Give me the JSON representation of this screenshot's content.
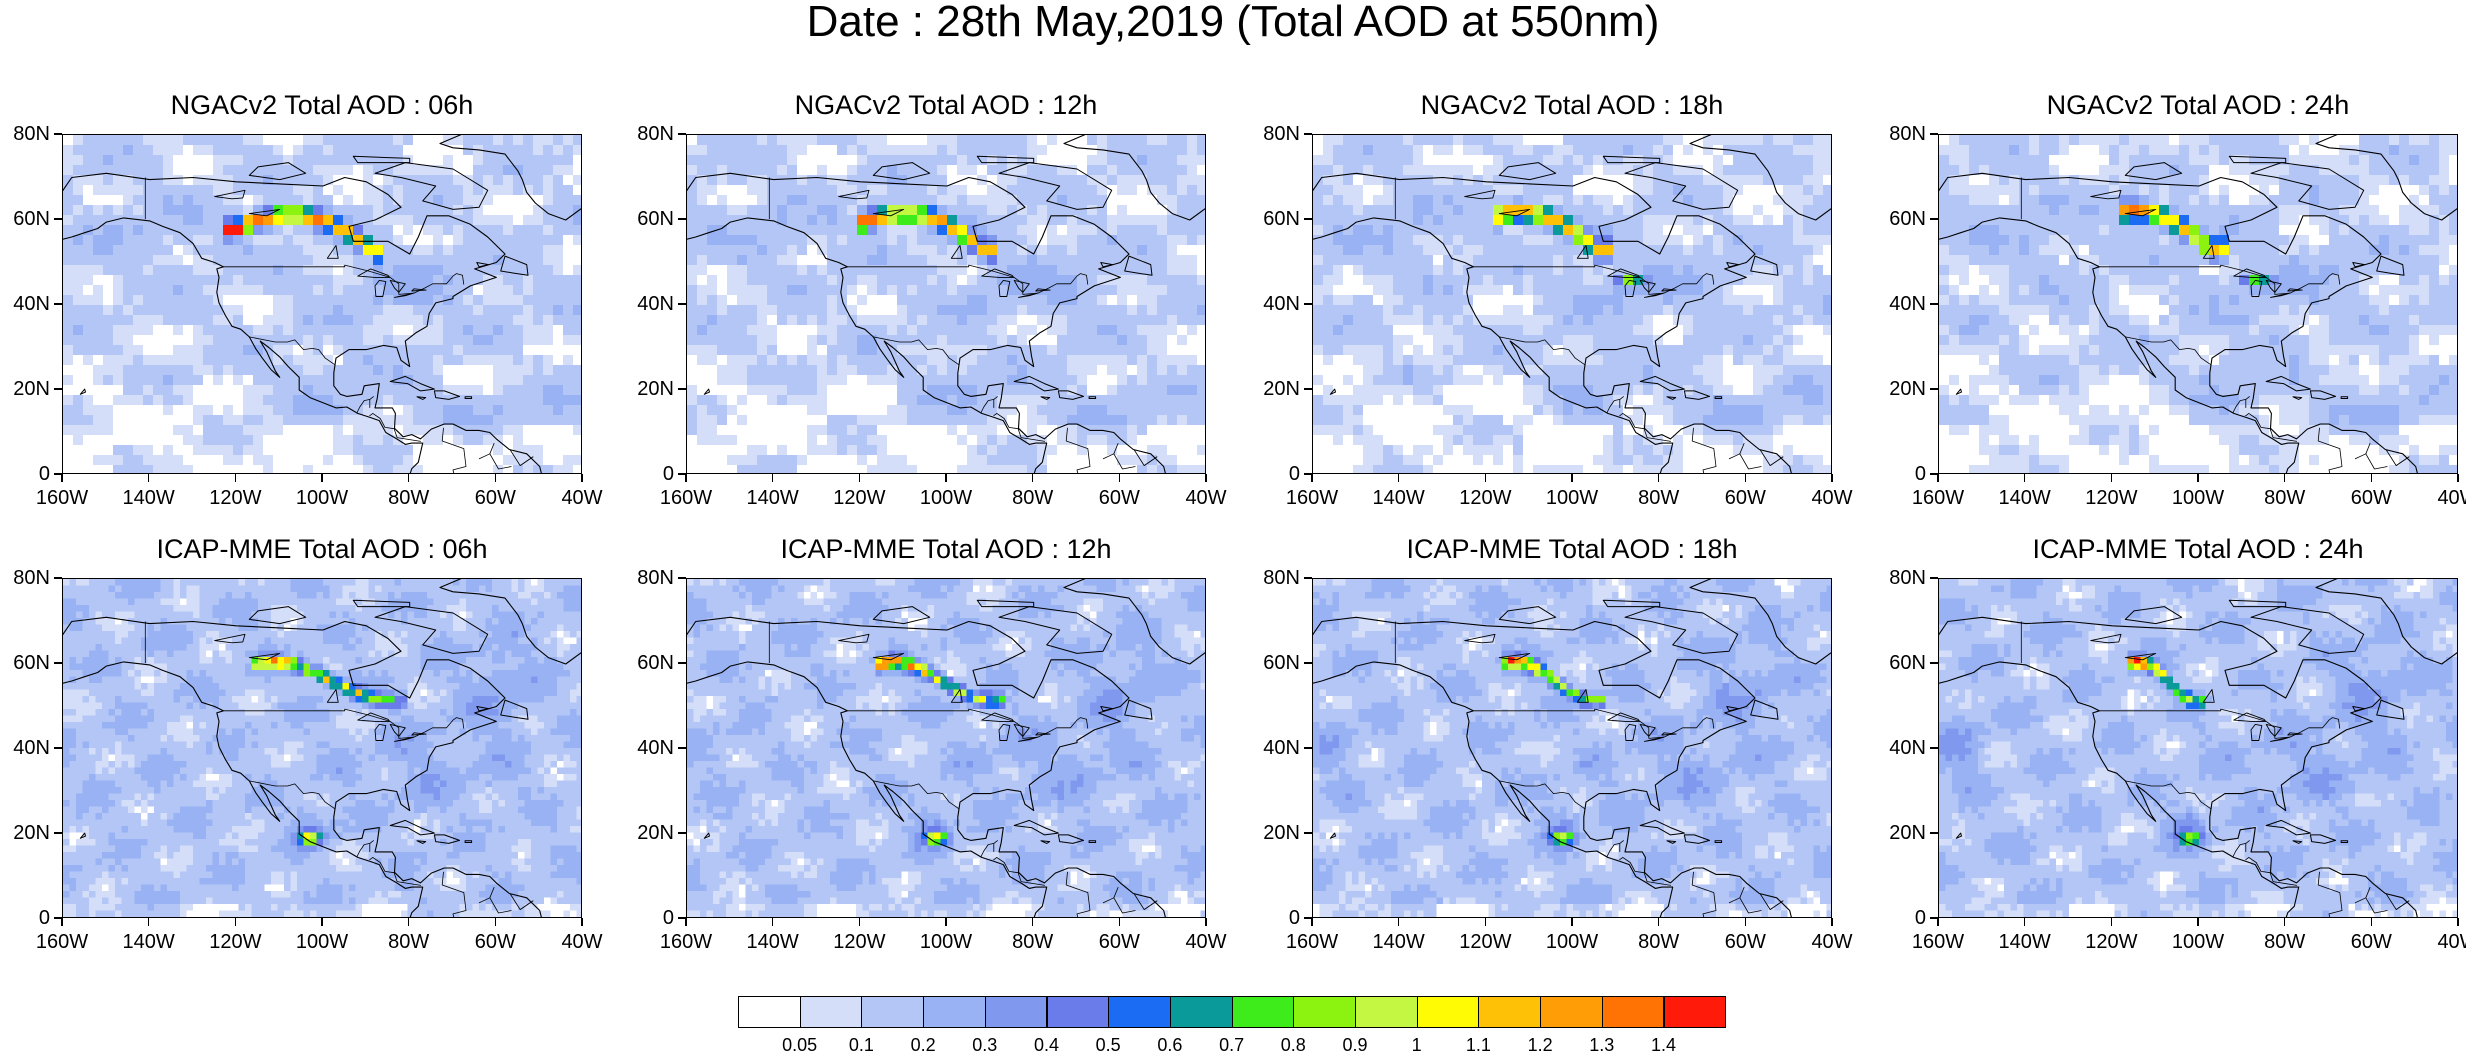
{
  "title": "Date : 28th May,2019 (Total AOD at 550nm)",
  "axes": {
    "lat_ticks": [
      "80N",
      "60N",
      "40N",
      "20N",
      "0"
    ],
    "lon_ticks": [
      "160W",
      "140W",
      "120W",
      "100W",
      "80W",
      "60W",
      "40W"
    ]
  },
  "panels": [
    {
      "id": "ngac-06",
      "title": "NGACv2 Total AOD : 06h",
      "model": "ngac",
      "hour": 6
    },
    {
      "id": "ngac-12",
      "title": "NGACv2 Total AOD : 12h",
      "model": "ngac",
      "hour": 12
    },
    {
      "id": "ngac-18",
      "title": "NGACv2 Total AOD : 18h",
      "model": "ngac",
      "hour": 18
    },
    {
      "id": "ngac-24",
      "title": "NGACv2 Total AOD : 24h",
      "model": "ngac",
      "hour": 24
    },
    {
      "id": "icap-06",
      "title": "ICAP-MME Total AOD : 06h",
      "model": "icap",
      "hour": 6
    },
    {
      "id": "icap-12",
      "title": "ICAP-MME Total AOD : 12h",
      "model": "icap",
      "hour": 12
    },
    {
      "id": "icap-18",
      "title": "ICAP-MME Total AOD : 18h",
      "model": "icap",
      "hour": 18
    },
    {
      "id": "icap-24",
      "title": "ICAP-MME Total AOD : 24h",
      "model": "icap",
      "hour": 24
    }
  ],
  "colorbar": {
    "labels": [
      "0.05",
      "0.1",
      "0.2",
      "0.3",
      "0.4",
      "0.5",
      "0.6",
      "0.7",
      "0.8",
      "0.9",
      "1",
      "1.1",
      "1.2",
      "1.3",
      "1.4"
    ],
    "colors": [
      "#ffffff",
      "#d4def9",
      "#b4c6f5",
      "#98b2f3",
      "#8099ef",
      "#6a7cea",
      "#1b6cf2",
      "#0a9a9a",
      "#3fec1b",
      "#8cf20f",
      "#c4f742",
      "#fffb05",
      "#ffc106",
      "#ff9d07",
      "#ff7305",
      "#ff1a0a"
    ]
  }
}
